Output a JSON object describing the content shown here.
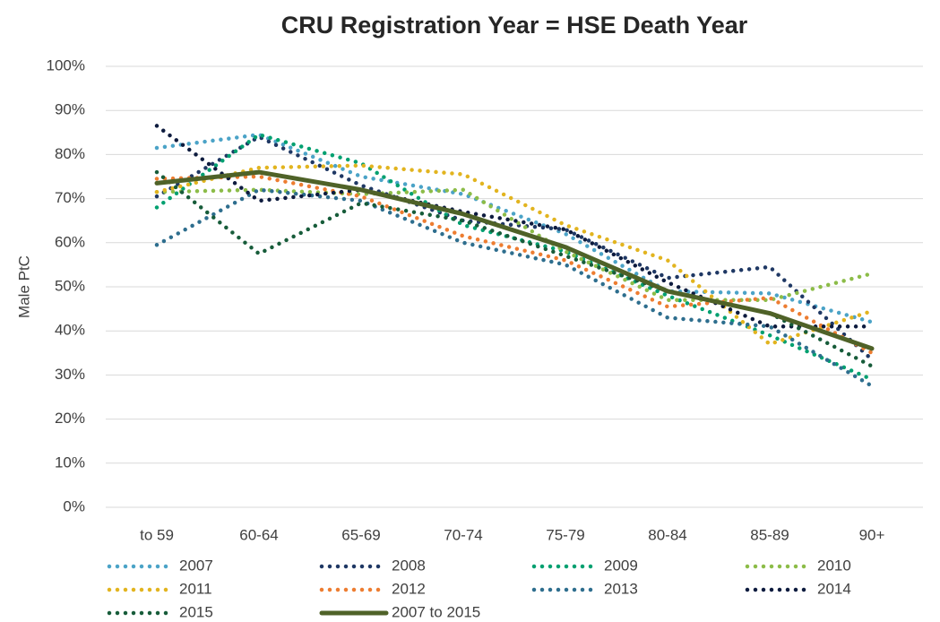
{
  "chart_data": {
    "type": "line",
    "title": "CRU Registration Year = HSE Death Year",
    "y_label": "Male PtC",
    "categories": [
      "to 59",
      "60-64",
      "65-69",
      "70-74",
      "75-79",
      "80-84",
      "85-89",
      "90+"
    ],
    "ylim": [
      0,
      100
    ],
    "yticks": [
      {
        "value": 0,
        "label": "0%"
      },
      {
        "value": 10,
        "label": "10%"
      },
      {
        "value": 20,
        "label": "20%"
      },
      {
        "value": 30,
        "label": "30%"
      },
      {
        "value": 40,
        "label": "40%"
      },
      {
        "value": 50,
        "label": "50%"
      },
      {
        "value": 60,
        "label": "60%"
      },
      {
        "value": 70,
        "label": "70%"
      },
      {
        "value": 80,
        "label": "80%"
      },
      {
        "value": 90,
        "label": "90%"
      },
      {
        "value": 100,
        "label": "100%"
      }
    ],
    "grid": true,
    "legend": "bottom",
    "series": [
      {
        "name": "2007",
        "color": "#4ba3c7",
        "line_style": "dotted",
        "values": [
          81.5,
          84.5,
          75,
          71,
          62,
          49,
          48.5,
          42
        ]
      },
      {
        "name": "2008",
        "color": "#1f3864",
        "line_style": "dotted",
        "values": [
          70.5,
          84,
          73,
          65,
          63,
          52,
          54.5,
          33.5
        ]
      },
      {
        "name": "2009",
        "color": "#00a070",
        "line_style": "dotted",
        "values": [
          68,
          84.5,
          78,
          64,
          58,
          48,
          39,
          29
        ]
      },
      {
        "name": "2010",
        "color": "#8cbc48",
        "line_style": "dotted",
        "values": [
          71.5,
          72,
          71,
          72,
          58,
          47,
          47,
          53
        ]
      },
      {
        "name": "2011",
        "color": "#e2b41f",
        "line_style": "dotted",
        "values": [
          71.5,
          77,
          77.5,
          75.5,
          64,
          56,
          37,
          44.5
        ]
      },
      {
        "name": "2012",
        "color": "#ed7d31",
        "line_style": "dotted",
        "values": [
          74.5,
          75,
          70.5,
          61.5,
          56,
          45.5,
          47.5,
          35
        ]
      },
      {
        "name": "2013",
        "color": "#2e6e8e",
        "line_style": "dotted",
        "values": [
          59.5,
          72,
          69.5,
          60,
          55,
          43,
          41,
          27.5
        ]
      },
      {
        "name": "2014",
        "color": "#0d1b3e",
        "line_style": "dotted",
        "values": [
          86.5,
          69.5,
          72,
          67,
          63,
          51,
          41,
          41
        ]
      },
      {
        "name": "2015",
        "color": "#175c3a",
        "line_style": "dotted",
        "values": [
          76,
          57.5,
          69,
          65,
          57,
          49,
          44,
          32
        ]
      },
      {
        "name": "2007 to 2015",
        "color": "#4f6228",
        "line_style": "solid",
        "values": [
          73.5,
          76,
          72,
          66.5,
          59,
          49,
          44,
          36
        ]
      }
    ]
  }
}
